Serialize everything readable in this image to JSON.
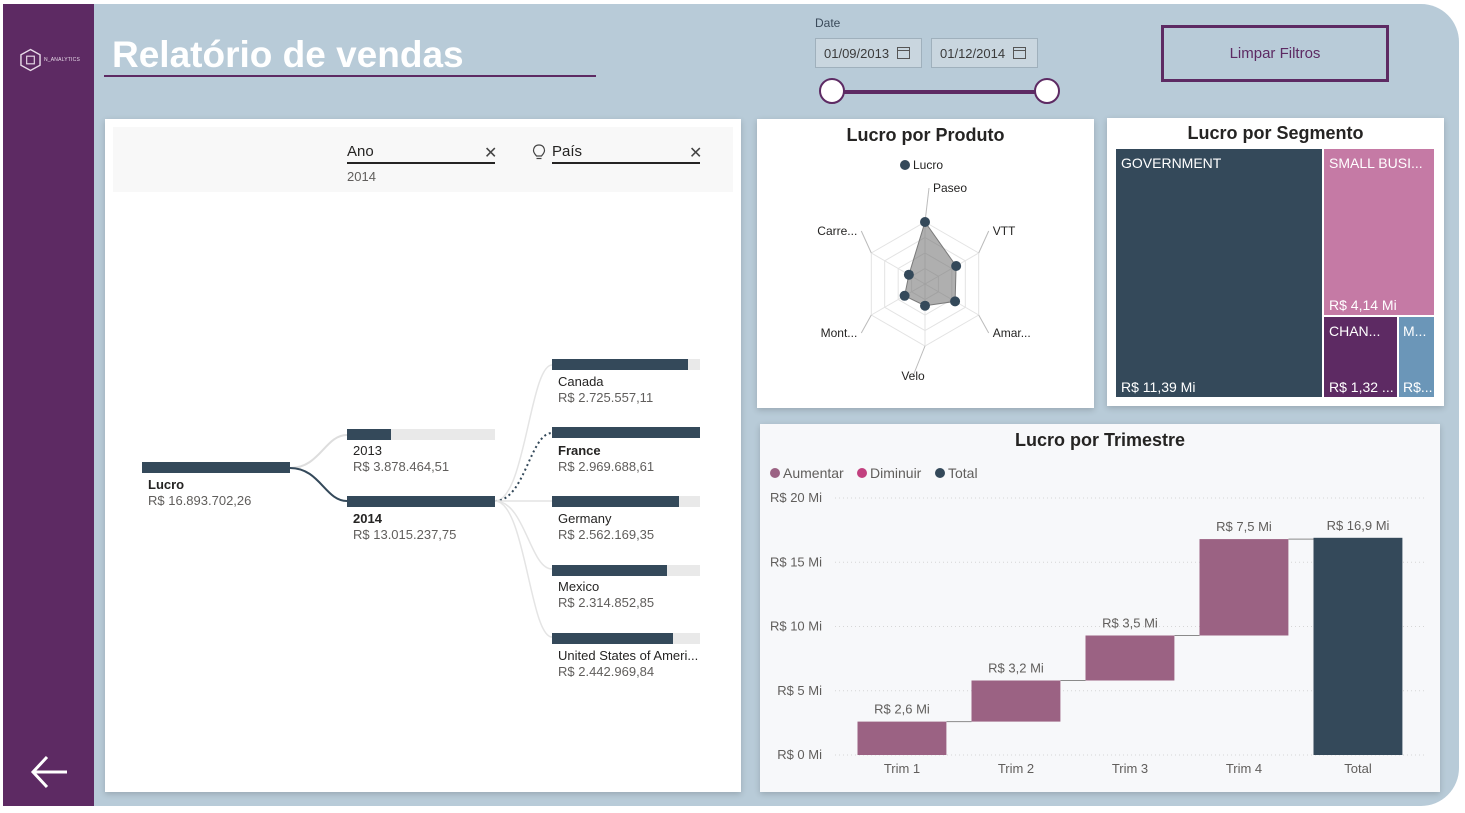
{
  "header": {
    "title": "Relatório de vendas",
    "logo_text": "N_ANALYTICS",
    "date_label": "Date",
    "date_start": "01/09/2013",
    "date_end": "01/12/2014",
    "clear_button": "Limpar Filtros"
  },
  "colors": {
    "sidebar": "#5d2a63",
    "background": "#b8cbd8",
    "dark_series": "#34495a",
    "pink": "#c57aa5",
    "mauve": "#9b6283",
    "blue_gray": "#6b96b8"
  },
  "decomposition": {
    "levels": [
      {
        "name": "Ano",
        "filter": "2014"
      },
      {
        "name": "País",
        "filter": ""
      }
    ],
    "root": {
      "label": "Lucro",
      "value": "R$ 16.893.702,26",
      "fraction": 1.0
    },
    "years": [
      {
        "label": "2013",
        "value": "R$ 3.878.464,51",
        "fraction": 0.3
      },
      {
        "label": "2014",
        "value": "R$ 13.015.237,75",
        "fraction": 1.0
      }
    ],
    "countries": [
      {
        "label": "Canada",
        "value": "R$ 2.725.557,11",
        "fraction": 0.92
      },
      {
        "label": "France",
        "value": "R$ 2.969.688,61",
        "fraction": 1.0
      },
      {
        "label": "Germany",
        "value": "R$ 2.562.169,35",
        "fraction": 0.86
      },
      {
        "label": "Mexico",
        "value": "R$ 2.314.852,85",
        "fraction": 0.78
      },
      {
        "label": "United States of Ameri...",
        "value": "R$ 2.442.969,84",
        "fraction": 0.82
      }
    ]
  },
  "radar": {
    "title": "Lucro por Produto",
    "legend": "Lucro",
    "axes": [
      "Paseo",
      "VTT",
      "Amar...",
      "Velo",
      "Mont...",
      "Carre..."
    ],
    "values": [
      1.0,
      0.58,
      0.56,
      0.35,
      0.38,
      0.3
    ]
  },
  "treemap": {
    "title": "Lucro por Segmento",
    "tiles": [
      {
        "name": "GOVERNMENT",
        "value": "R$ 11,39 Mi",
        "color": "#34495a"
      },
      {
        "name": "SMALL BUSI...",
        "value": "R$ 4,14 Mi",
        "color": "#c57aa5"
      },
      {
        "name": "CHAN...",
        "value": "R$ 1,32 ...",
        "color": "#5d2a63"
      },
      {
        "name": "M...",
        "value": "R$...",
        "color": "#6b96b8"
      }
    ]
  },
  "waterfall": {
    "title": "Lucro por Trimestre",
    "legend": [
      {
        "name": "Aumentar",
        "color": "#9b6283"
      },
      {
        "name": "Diminuir",
        "color": "#c2407f"
      },
      {
        "name": "Total",
        "color": "#34495a"
      }
    ],
    "y_ticks": [
      "R$ 0 Mi",
      "R$ 5 Mi",
      "R$ 10 Mi",
      "R$ 15 Mi",
      "R$ 20 Mi"
    ],
    "chart_data": {
      "type": "bar",
      "subtype": "waterfall",
      "title": "Lucro por Trimestre",
      "categories": [
        "Trim 1",
        "Trim 2",
        "Trim 3",
        "Trim 4",
        "Total"
      ],
      "values": [
        2.6,
        3.2,
        3.5,
        7.5,
        16.9
      ],
      "labels": [
        "R$ 2,6 Mi",
        "R$ 3,2 Mi",
        "R$ 3,5 Mi",
        "R$ 7,5 Mi",
        "R$ 16,9 Mi"
      ],
      "kinds": [
        "increase",
        "increase",
        "increase",
        "increase",
        "total"
      ],
      "ylim": [
        0,
        20
      ],
      "grid": true,
      "legend_position": "top-left"
    }
  }
}
